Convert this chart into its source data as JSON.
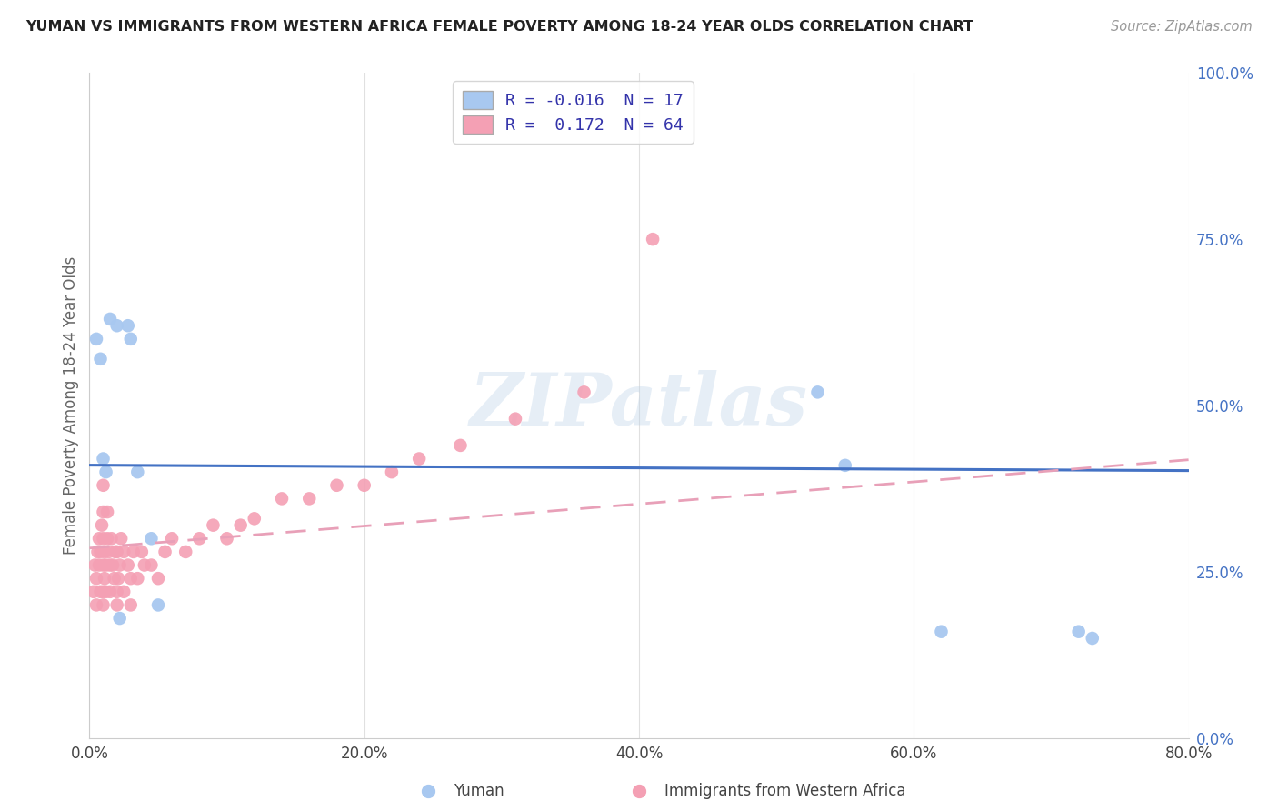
{
  "title": "YUMAN VS IMMIGRANTS FROM WESTERN AFRICA FEMALE POVERTY AMONG 18-24 YEAR OLDS CORRELATION CHART",
  "source": "Source: ZipAtlas.com",
  "xlabel_ticks": [
    "0.0%",
    "20.0%",
    "40.0%",
    "60.0%",
    "80.0%"
  ],
  "xlabel_vals": [
    0,
    20,
    40,
    60,
    80
  ],
  "ylabel_label": "Female Poverty Among 18-24 Year Olds",
  "right_yticks": [
    "100.0%",
    "75.0%",
    "50.0%",
    "25.0%",
    "0.0%"
  ],
  "right_yvals": [
    100,
    75,
    50,
    25,
    0
  ],
  "xlim": [
    0,
    80
  ],
  "ylim": [
    0,
    100
  ],
  "watermark_text": "ZIPatlas",
  "legend_label1": "R = -0.016  N = 17",
  "legend_label2": "R =  0.172  N = 64",
  "color_yuman": "#a8c8f0",
  "color_immigrants": "#f4a0b4",
  "color_yuman_line": "#4472c4",
  "color_immigrants_line": "#e8a0b8",
  "background_color": "#ffffff",
  "grid_color": "#e0e0e0",
  "yuman_x": [
    0.5,
    0.8,
    1.0,
    1.2,
    1.5,
    2.0,
    2.8,
    3.0,
    3.5,
    4.5,
    5.0,
    53.0,
    55.0,
    62.0,
    72.0,
    73.0,
    2.2
  ],
  "yuman_y": [
    60,
    57,
    42,
    40,
    63,
    62,
    62,
    60,
    40,
    30,
    20,
    52,
    41,
    16,
    16,
    15,
    18
  ],
  "imm_x": [
    0.3,
    0.4,
    0.5,
    0.5,
    0.6,
    0.7,
    0.7,
    0.8,
    0.8,
    0.9,
    1.0,
    1.0,
    1.0,
    1.0,
    1.0,
    1.0,
    1.1,
    1.1,
    1.2,
    1.2,
    1.3,
    1.3,
    1.4,
    1.5,
    1.5,
    1.6,
    1.7,
    1.8,
    1.9,
    2.0,
    2.0,
    2.0,
    2.1,
    2.2,
    2.3,
    2.5,
    2.5,
    2.8,
    3.0,
    3.0,
    3.2,
    3.5,
    3.8,
    4.0,
    4.5,
    5.0,
    5.5,
    6.0,
    7.0,
    8.0,
    9.0,
    10.0,
    11.0,
    12.0,
    14.0,
    16.0,
    18.0,
    20.0,
    22.0,
    24.0,
    27.0,
    31.0,
    36.0,
    41.0
  ],
  "imm_y": [
    22,
    26,
    20,
    24,
    28,
    26,
    30,
    22,
    28,
    32,
    20,
    22,
    26,
    30,
    34,
    38,
    24,
    28,
    22,
    26,
    30,
    34,
    28,
    22,
    26,
    30,
    26,
    24,
    28,
    20,
    22,
    28,
    24,
    26,
    30,
    22,
    28,
    26,
    20,
    24,
    28,
    24,
    28,
    26,
    26,
    24,
    28,
    30,
    28,
    30,
    32,
    30,
    32,
    33,
    36,
    36,
    38,
    38,
    40,
    42,
    44,
    48,
    52,
    75
  ],
  "legend_bottom_label1": "Yuman",
  "legend_bottom_label2": "Immigrants from Western Africa"
}
